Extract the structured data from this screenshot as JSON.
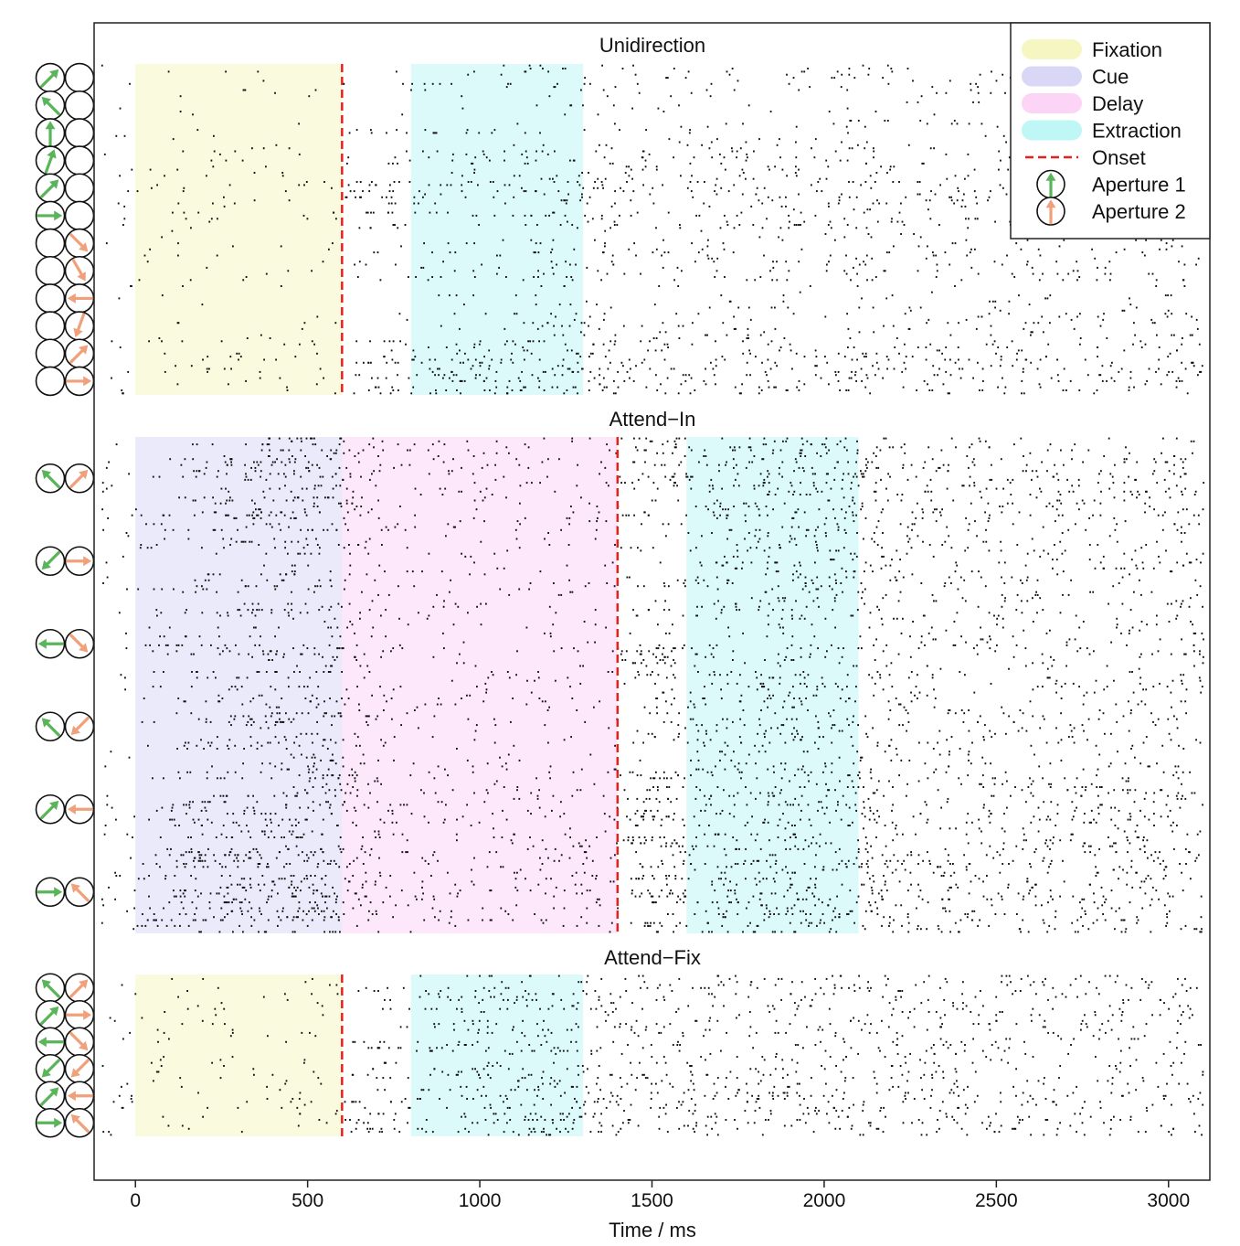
{
  "chart_data": {
    "type": "scatter",
    "description_kind": "spike-raster",
    "xlabel": "Time / ms",
    "xlim": [
      -120,
      3120
    ],
    "xticks": [
      0,
      500,
      1000,
      1500,
      2000,
      2500,
      3000
    ],
    "xtick_labels": [
      "0",
      "500",
      "1000",
      "1500",
      "2000",
      "2500",
      "3000"
    ],
    "legend": {
      "placement": "top-right",
      "entries": [
        {
          "key": "fixation",
          "label": "Fixation",
          "kind": "band",
          "color": "#f6f6c2"
        },
        {
          "key": "cue",
          "label": "Cue",
          "kind": "band",
          "color": "#d8d8f6"
        },
        {
          "key": "delay",
          "label": "Delay",
          "kind": "band",
          "color": "#fcd4f6"
        },
        {
          "key": "extraction",
          "label": "Extraction",
          "kind": "band",
          "color": "#bff6f6"
        },
        {
          "key": "onset",
          "label": "Onset",
          "kind": "dashed-line",
          "color": "#e8201c"
        },
        {
          "key": "aperture1",
          "label": "Aperture 1",
          "kind": "arrow-circle",
          "color": "#5ab55a"
        },
        {
          "key": "aperture2",
          "label": "Aperture 2",
          "kind": "arrow-circle",
          "color": "#f0a07a"
        }
      ]
    },
    "panels": [
      {
        "title": "Unidirection",
        "onset": 600,
        "spike_end": 3100,
        "bands": [
          {
            "phase": "fixation",
            "start": 0,
            "end": 600
          },
          {
            "phase": "extraction",
            "start": 800,
            "end": 1300
          }
        ],
        "rows": 12,
        "row_density": [
          0.35,
          0.3,
          0.4,
          0.55,
          0.75,
          0.8,
          0.5,
          0.4,
          0.35,
          0.5,
          0.7,
          0.85
        ],
        "conditions": [
          {
            "ap1": 45,
            "ap2": null
          },
          {
            "ap1": 135,
            "ap2": null
          },
          {
            "ap1": 90,
            "ap2": null
          },
          {
            "ap1": 70,
            "ap2": null
          },
          {
            "ap1": 45,
            "ap2": null
          },
          {
            "ap1": 0,
            "ap2": null
          },
          {
            "ap1": null,
            "ap2": 315
          },
          {
            "ap1": null,
            "ap2": 300
          },
          {
            "ap1": null,
            "ap2": 180
          },
          {
            "ap1": null,
            "ap2": 250
          },
          {
            "ap1": null,
            "ap2": 45
          },
          {
            "ap1": null,
            "ap2": 0
          }
        ]
      },
      {
        "title": "Attend−In",
        "onset": 1400,
        "spike_end": 3100,
        "bands": [
          {
            "phase": "cue",
            "start": 0,
            "end": 600
          },
          {
            "phase": "delay",
            "start": 600,
            "end": 1400
          },
          {
            "phase": "extraction",
            "start": 1600,
            "end": 2100
          }
        ],
        "rows": 6,
        "row_density": [
          0.75,
          0.6,
          0.5,
          0.55,
          0.8,
          0.9
        ],
        "conditions": [
          {
            "ap1": 135,
            "ap2": 45
          },
          {
            "ap1": 225,
            "ap2": 0
          },
          {
            "ap1": 180,
            "ap2": 315
          },
          {
            "ap1": 135,
            "ap2": 225
          },
          {
            "ap1": 45,
            "ap2": 180
          },
          {
            "ap1": 0,
            "ap2": 135
          }
        ]
      },
      {
        "title": "Attend−Fix",
        "onset": 600,
        "spike_end": 3100,
        "bands": [
          {
            "phase": "fixation",
            "start": 0,
            "end": 600
          },
          {
            "phase": "extraction",
            "start": 800,
            "end": 1300
          }
        ],
        "rows": 6,
        "row_density": [
          0.75,
          0.55,
          0.6,
          0.7,
          0.8,
          0.85
        ],
        "conditions": [
          {
            "ap1": 135,
            "ap2": 45
          },
          {
            "ap1": 45,
            "ap2": 0
          },
          {
            "ap1": 180,
            "ap2": 315
          },
          {
            "ap1": 225,
            "ap2": 225
          },
          {
            "ap1": 45,
            "ap2": 180
          },
          {
            "ap1": 0,
            "ap2": 135
          }
        ]
      }
    ]
  }
}
